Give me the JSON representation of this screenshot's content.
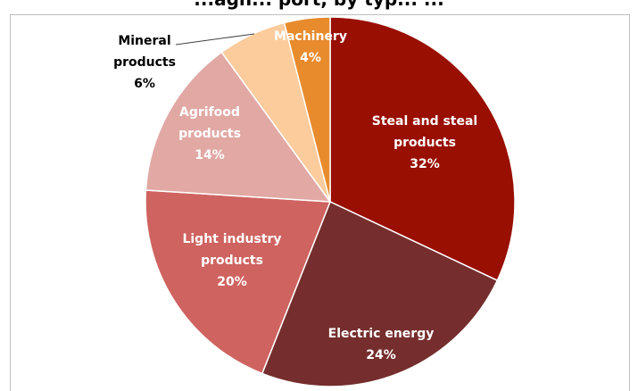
{
  "chart_data": {
    "type": "pie",
    "title": "...agn... port, by typ... ...",
    "slices": [
      {
        "label_lines": [
          "Steal and steal",
          "products",
          "32%"
        ],
        "name": "Steal and steal products",
        "value": 32,
        "color": "#990f02",
        "label_color": "#ffffff"
      },
      {
        "label_lines": [
          "Electric energy",
          "24%"
        ],
        "name": "Electric energy",
        "value": 24,
        "color": "#752e2d",
        "label_color": "#ffffff"
      },
      {
        "label_lines": [
          "Light industry",
          "products",
          "20%"
        ],
        "name": "Light industry products",
        "value": 20,
        "color": "#cf6360",
        "label_color": "#ffffff"
      },
      {
        "label_lines": [
          "Agrifood",
          "products",
          "14%"
        ],
        "name": "Agrifood products",
        "value": 14,
        "color": "#e1a8a4",
        "label_color": "#ffffff"
      },
      {
        "label_lines": [
          "Mineral",
          "products",
          "6%"
        ],
        "name": "Mineral products",
        "value": 6,
        "color": "#fccc9d",
        "label_color": "#000000"
      },
      {
        "label_lines": [
          "Machinery",
          "4%"
        ],
        "name": "Machinery",
        "value": 4,
        "color": "#e88b2c",
        "label_color": "#ffffff"
      }
    ],
    "legend": "none",
    "start_angle": "12 o'clock, clockwise"
  }
}
